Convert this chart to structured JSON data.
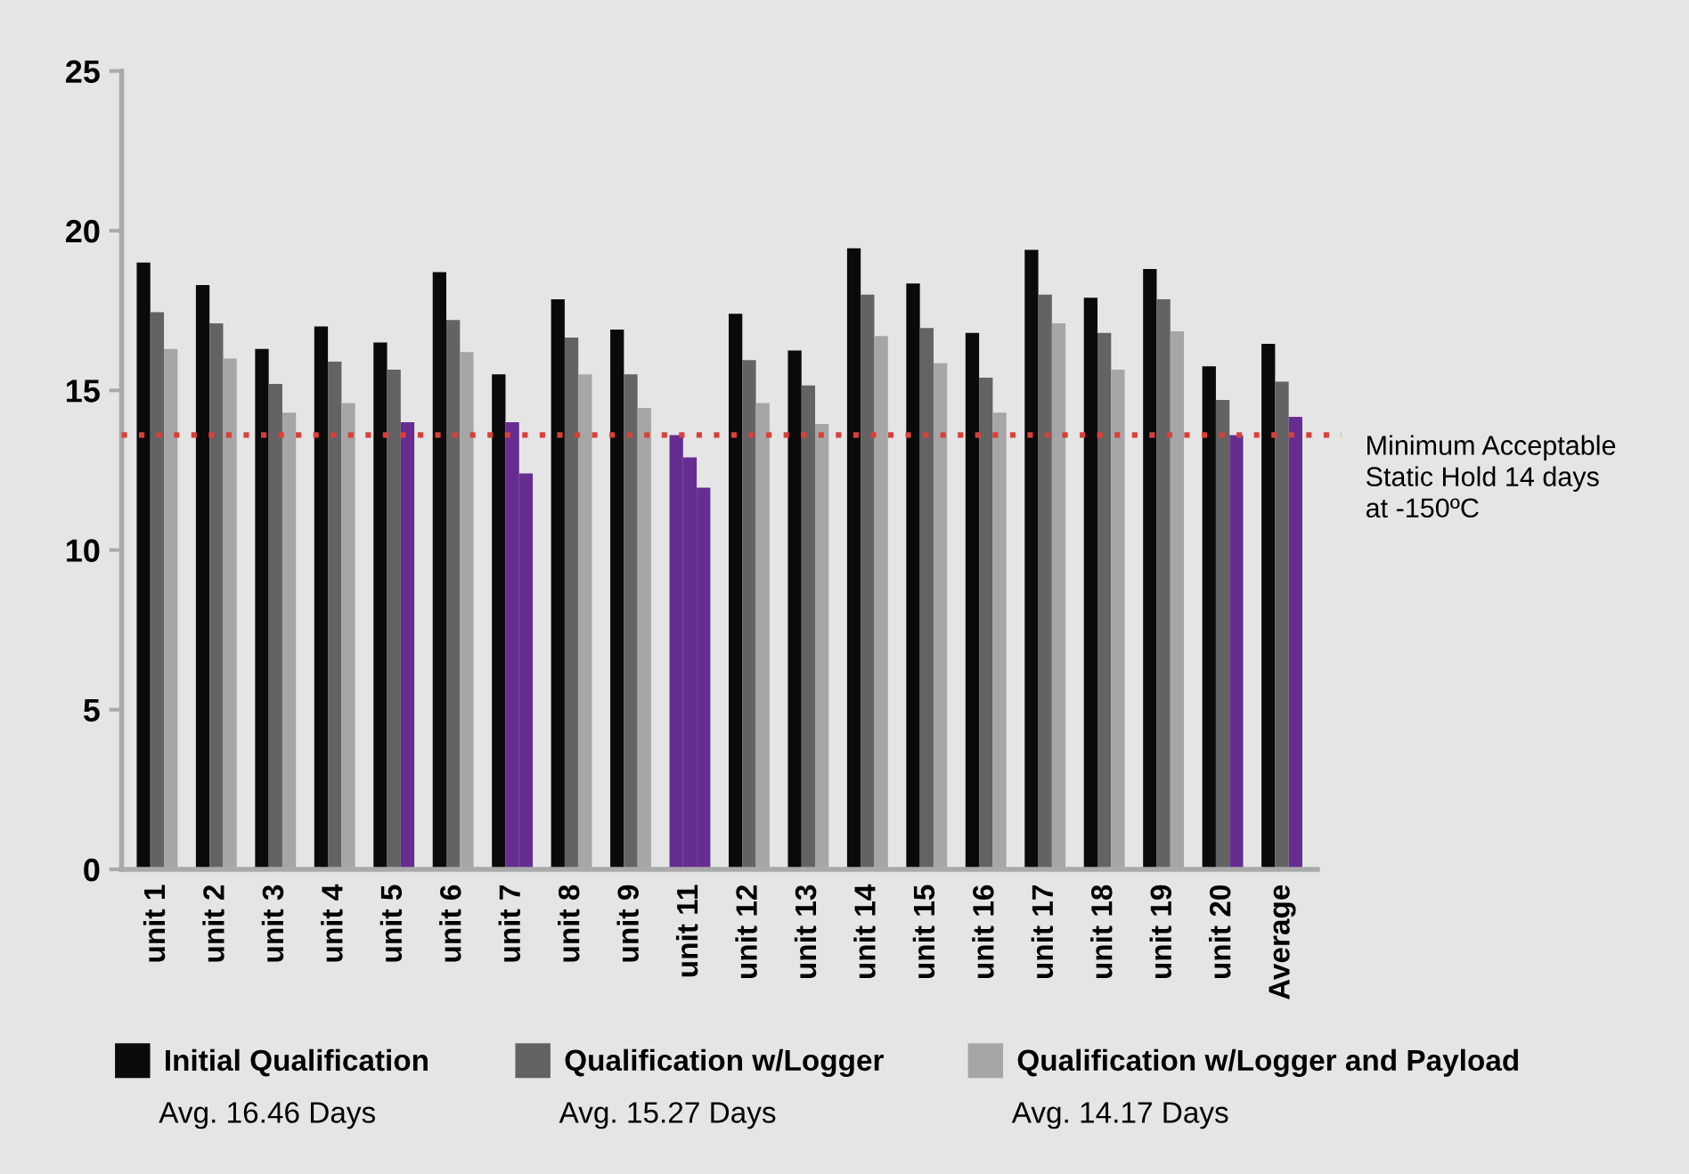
{
  "chart_data": {
    "type": "bar",
    "categories": [
      "unit 1",
      "unit 2",
      "unit 3",
      "unit 4",
      "unit 5",
      "unit 6",
      "unit 7",
      "unit 8",
      "unit 9",
      "unit 11",
      "unit 12",
      "unit 13",
      "unit 14",
      "unit 15",
      "unit 16",
      "unit 17",
      "unit 18",
      "unit 19",
      "unit 20",
      "Average"
    ],
    "series": [
      {
        "name": "Initial Qualification",
        "color": "#0a0a0a",
        "colors": [
          "#0a0a0a",
          "#0a0a0a",
          "#0a0a0a",
          "#0a0a0a",
          "#0a0a0a",
          "#0a0a0a",
          "#0a0a0a",
          "#0a0a0a",
          "#0a0a0a",
          "#662d91",
          "#0a0a0a",
          "#0a0a0a",
          "#0a0a0a",
          "#0a0a0a",
          "#0a0a0a",
          "#0a0a0a",
          "#0a0a0a",
          "#0a0a0a",
          "#0a0a0a",
          "#0a0a0a"
        ],
        "values": [
          19.0,
          18.3,
          16.3,
          17.0,
          16.5,
          18.7,
          15.5,
          17.85,
          16.9,
          13.6,
          17.4,
          16.25,
          19.45,
          18.35,
          16.8,
          19.4,
          17.9,
          18.8,
          15.75,
          16.46
        ]
      },
      {
        "name": "Qualification w/Logger",
        "color": "#636363",
        "colors": [
          "#636363",
          "#636363",
          "#636363",
          "#636363",
          "#636363",
          "#636363",
          "#662d91",
          "#636363",
          "#636363",
          "#662d91",
          "#636363",
          "#636363",
          "#636363",
          "#636363",
          "#636363",
          "#636363",
          "#636363",
          "#636363",
          "#636363",
          "#636363"
        ],
        "values": [
          17.45,
          17.1,
          15.2,
          15.9,
          15.65,
          17.2,
          14.0,
          16.65,
          15.5,
          12.9,
          15.95,
          15.15,
          18.0,
          16.95,
          15.4,
          18.0,
          16.8,
          17.85,
          14.7,
          15.27
        ]
      },
      {
        "name": "Qualification w/Logger and Payload",
        "color": "#a6a6a6",
        "colors": [
          "#a6a6a6",
          "#a6a6a6",
          "#a6a6a6",
          "#a6a6a6",
          "#662d91",
          "#a6a6a6",
          "#662d91",
          "#a6a6a6",
          "#a6a6a6",
          "#662d91",
          "#a6a6a6",
          "#a6a6a6",
          "#a6a6a6",
          "#a6a6a6",
          "#a6a6a6",
          "#a6a6a6",
          "#a6a6a6",
          "#a6a6a6",
          "#662d91",
          "#662d91"
        ],
        "values": [
          16.3,
          16.0,
          14.3,
          14.6,
          14.0,
          16.2,
          12.4,
          15.5,
          14.45,
          11.95,
          14.6,
          13.95,
          16.7,
          15.85,
          14.3,
          17.1,
          15.65,
          16.85,
          13.6,
          14.17
        ]
      }
    ],
    "ylim": [
      0,
      25
    ],
    "yticks": [
      0,
      5,
      10,
      15,
      20,
      25
    ],
    "grid": false,
    "legend": "bottom",
    "ref_lines": [
      {
        "axis": "y",
        "value": 13.6,
        "label": "Minimum Acceptable\nStatic Hold 14 days\nat -150ºC",
        "color": "#d9403a",
        "line_style": "dotted"
      }
    ],
    "annotations": [
      "Avg. 16.46 Days",
      "Avg. 15.27 Days",
      "Avg. 14.17 Days"
    ]
  }
}
